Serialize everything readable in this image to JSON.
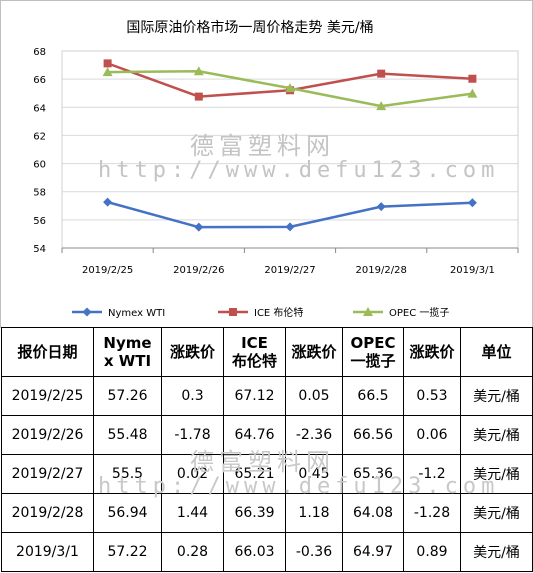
{
  "chart_data": {
    "type": "line",
    "title": "国际原油价格市场一周价格走势  美元/桶",
    "categories": [
      "2019/2/25",
      "2019/2/26",
      "2019/2/27",
      "2019/2/28",
      "2019/3/1"
    ],
    "ylim": [
      54,
      68
    ],
    "yticks": [
      54,
      56,
      58,
      60,
      62,
      64,
      66,
      68
    ],
    "grid": true,
    "legend_position": "bottom",
    "series": [
      {
        "name": "Nymex WTI",
        "color": "#4472C4",
        "marker": "diamond",
        "values": [
          57.26,
          55.48,
          55.5,
          56.94,
          57.22
        ]
      },
      {
        "name": "ICE 布伦特",
        "color": "#C0504D",
        "marker": "square",
        "values": [
          67.12,
          64.76,
          65.21,
          66.39,
          66.03
        ]
      },
      {
        "name": "OPEC 一揽子",
        "color": "#9BBB59",
        "marker": "triangle",
        "values": [
          66.5,
          66.56,
          65.36,
          64.08,
          64.97
        ]
      }
    ]
  },
  "watermark": {
    "name": "德富塑料网",
    "url": "http://www.defu123.com"
  },
  "table": {
    "headers": [
      "报价日期",
      "Nymex WTI",
      "涨跌价",
      "ICE 布伦特",
      "涨跌价",
      "OPEC 一揽子",
      "涨跌价",
      "单位"
    ],
    "rows": [
      [
        "2019/2/25",
        "57.26",
        "0.3",
        "67.12",
        "0.05",
        "66.5",
        "0.53",
        "美元/桶"
      ],
      [
        "2019/2/26",
        "55.48",
        "-1.78",
        "64.76",
        "-2.36",
        "66.56",
        "0.06",
        "美元/桶"
      ],
      [
        "2019/2/27",
        "55.5",
        "0.02",
        "65.21",
        "0.45",
        "65.36",
        "-1.2",
        "美元/桶"
      ],
      [
        "2019/2/28",
        "56.94",
        "1.44",
        "66.39",
        "1.18",
        "64.08",
        "-1.28",
        "美元/桶"
      ],
      [
        "2019/3/1",
        "57.22",
        "0.28",
        "66.03",
        "-0.36",
        "64.97",
        "0.89",
        "美元/桶"
      ]
    ]
  }
}
